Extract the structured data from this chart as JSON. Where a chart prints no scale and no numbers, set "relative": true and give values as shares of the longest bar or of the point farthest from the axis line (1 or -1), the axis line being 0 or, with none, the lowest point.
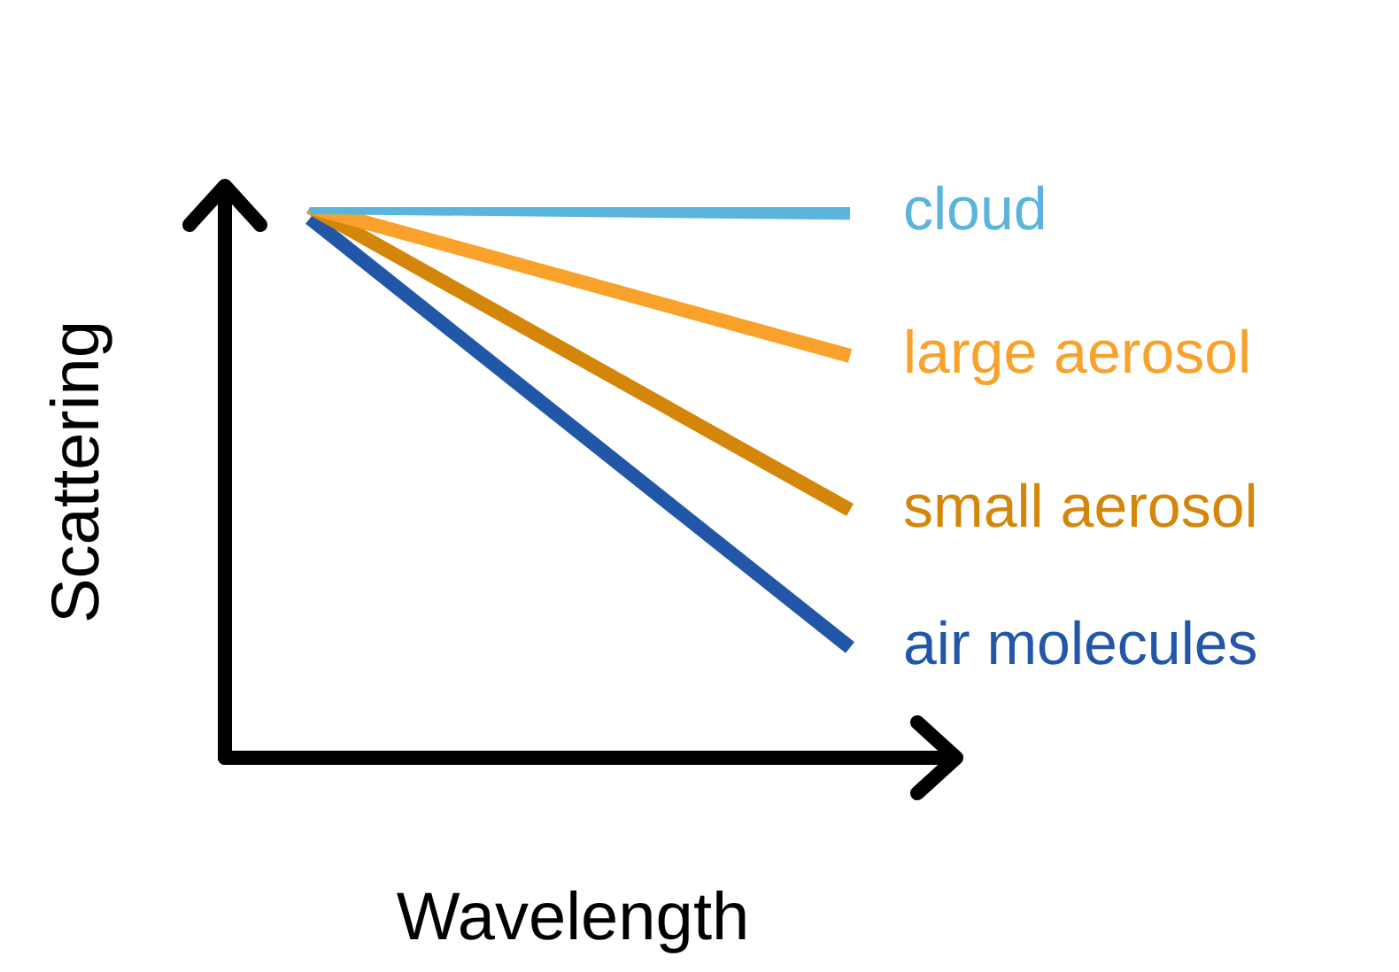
{
  "chart_data": {
    "type": "line",
    "relative": true,
    "xlabel": "Wavelength",
    "ylabel": "Scattering",
    "categories": [
      null,
      null
    ],
    "legend": false,
    "series": [
      {
        "name": "cloud",
        "color": "#5ab4dc",
        "values": [
          1,
          0.99
        ]
      },
      {
        "name": "large aerosol",
        "color": "#f9a22b",
        "values": [
          1,
          0.73
        ]
      },
      {
        "name": "small aerosol",
        "color": "#d4860a",
        "values": [
          1,
          0.45
        ]
      },
      {
        "name": "air molecules",
        "color": "#2257a8",
        "values": [
          0.98,
          0.2
        ]
      }
    ]
  }
}
